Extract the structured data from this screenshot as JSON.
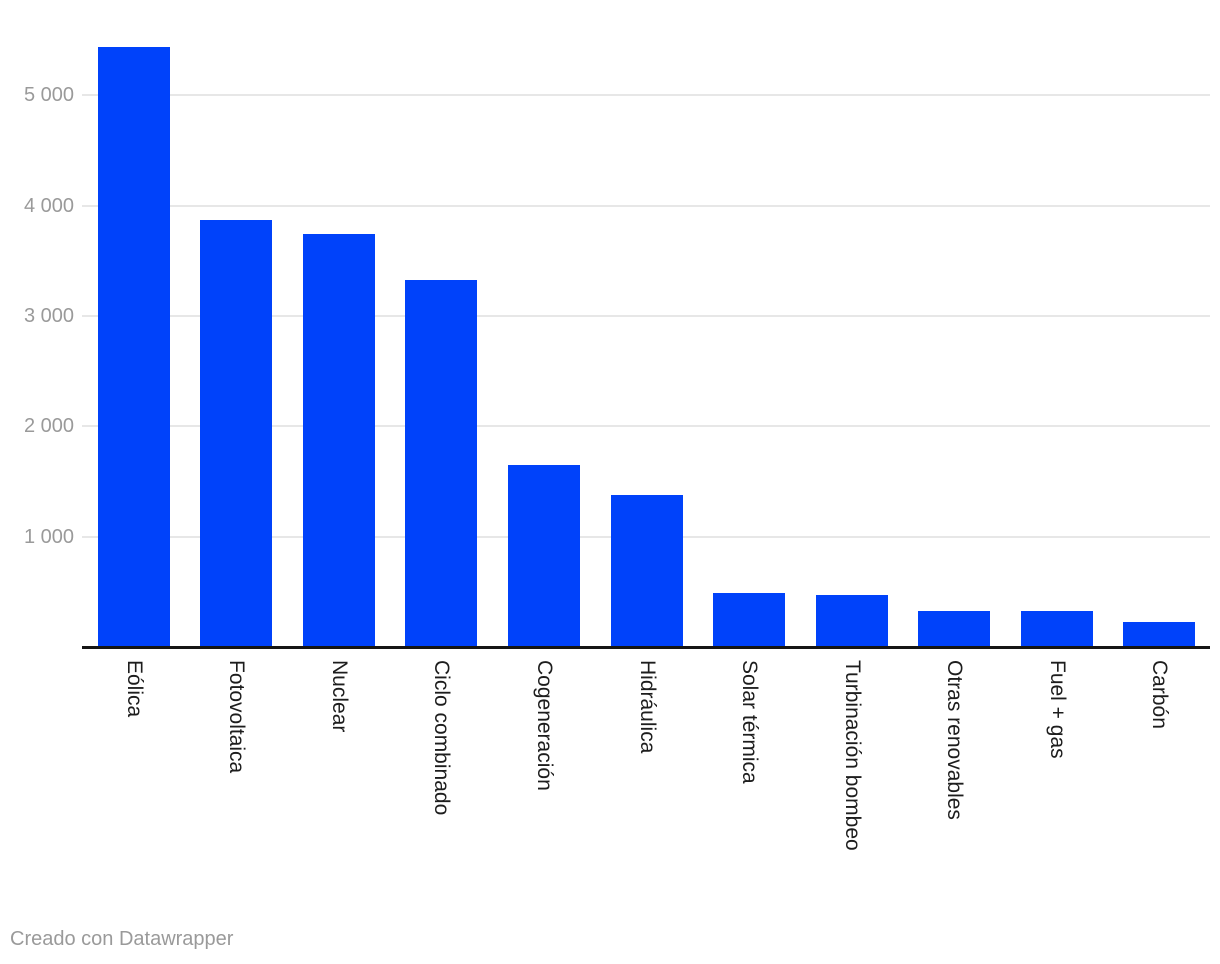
{
  "chart_data": {
    "type": "bar",
    "title": "",
    "xlabel": "",
    "ylabel": "",
    "categories": [
      "Eólica",
      "Fotovoltaica",
      "Nuclear",
      "Ciclo combinado",
      "Cogeneración",
      "Hidráulica",
      "Solar térmica",
      "Turbinación bombeo",
      "Otras renovables",
      "Fuel + gas",
      "Carbón"
    ],
    "values": [
      5435,
      3870,
      3740,
      3325,
      1650,
      1375,
      490,
      475,
      330,
      330,
      230
    ],
    "yticks": [
      {
        "value": 1000,
        "label": "1 000"
      },
      {
        "value": 2000,
        "label": "2 000"
      },
      {
        "value": 3000,
        "label": "3 000"
      },
      {
        "value": 4000,
        "label": "4 000"
      },
      {
        "value": 5000,
        "label": "5 000"
      }
    ],
    "ylim": [
      0,
      5500
    ],
    "grid": "horizontal",
    "legend": "none",
    "bar_color": "#0042fa"
  },
  "colors": {
    "background": "#ffffff",
    "bar": "#0042fa",
    "gridline": "#e7e7e7",
    "axis_line": "#151515",
    "y_tick_label": "#9a9a9a",
    "x_axis_label": "#1d1d1d",
    "attribution": "#9a9a9a"
  },
  "footer": {
    "text": "Creado con Datawrapper"
  }
}
